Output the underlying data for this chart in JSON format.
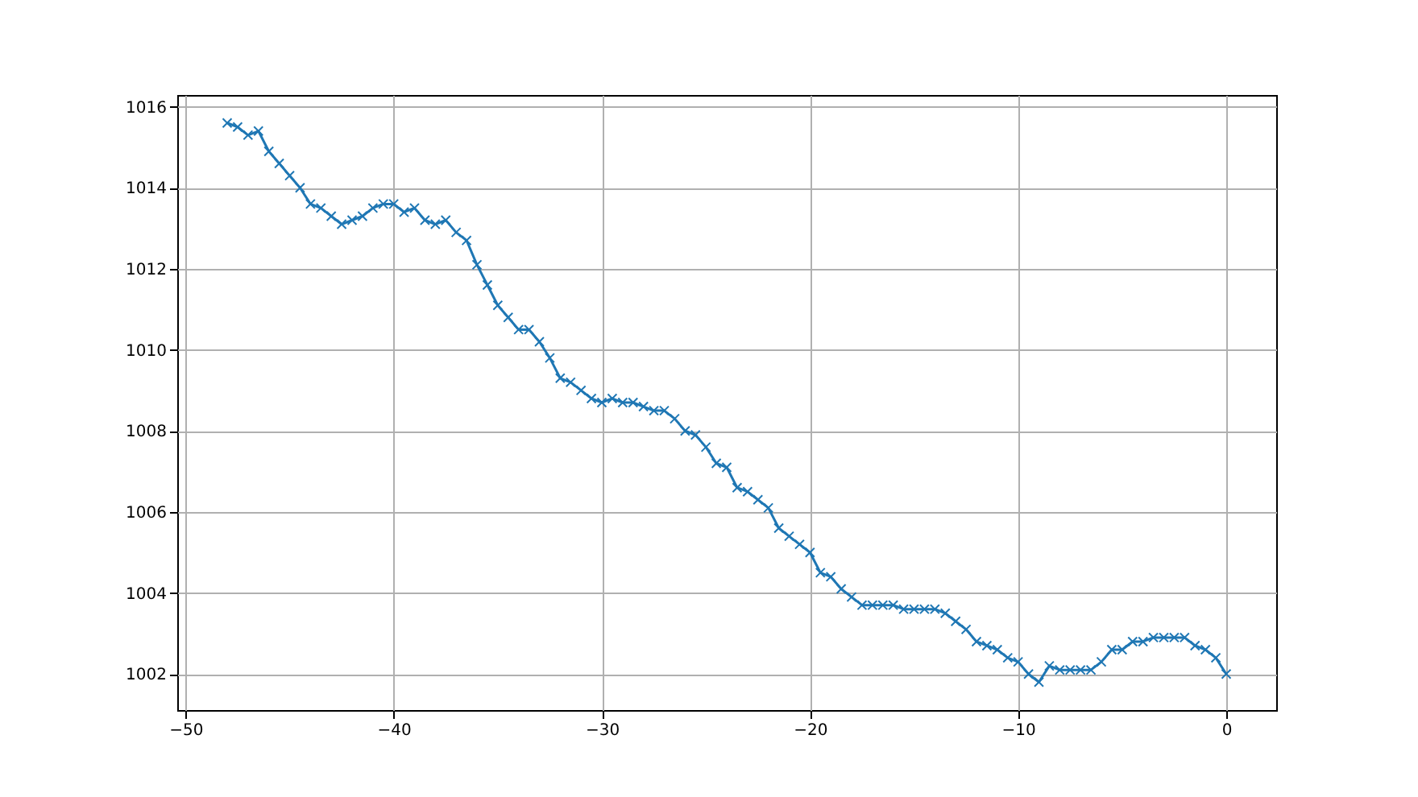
{
  "chart_data": {
    "type": "line",
    "marker": "cross",
    "grid": true,
    "x": [
      -48,
      -47.5,
      -47,
      -46.5,
      -46,
      -45.5,
      -45,
      -44.5,
      -44,
      -43.5,
      -43,
      -42.5,
      -42,
      -41.5,
      -41,
      -40.5,
      -40,
      -39.5,
      -39,
      -38.5,
      -38,
      -37.5,
      -37,
      -36.5,
      -36,
      -35.5,
      -35,
      -34.5,
      -34,
      -33.5,
      -33,
      -32.5,
      -32,
      -31.5,
      -31,
      -30.5,
      -30,
      -29.5,
      -29,
      -28.5,
      -28,
      -27.5,
      -27,
      -26.5,
      -26,
      -25.5,
      -25,
      -24.5,
      -24,
      -23.5,
      -23,
      -22.5,
      -22,
      -21.5,
      -21,
      -20.5,
      -20,
      -19.5,
      -19,
      -18.5,
      -18,
      -17.5,
      -17,
      -16.5,
      -16,
      -15.5,
      -15,
      -14.5,
      -14,
      -13.5,
      -13,
      -12.5,
      -12,
      -11.5,
      -11,
      -10.5,
      -10,
      -9.5,
      -9,
      -8.5,
      -8,
      -7.5,
      -7,
      -6.5,
      -6,
      -5.5,
      -5,
      -4.5,
      -4,
      -3.5,
      -3,
      -2.5,
      -2,
      -1.5,
      -1,
      -0.5,
      0
    ],
    "series": [
      {
        "color": "#1f77b4",
        "values": [
          1015.6,
          1015.5,
          1015.3,
          1015.4,
          1014.9,
          1014.6,
          1014.3,
          1014.0,
          1013.6,
          1013.5,
          1013.3,
          1013.1,
          1013.2,
          1013.3,
          1013.5,
          1013.6,
          1013.6,
          1013.4,
          1013.5,
          1013.2,
          1013.1,
          1013.2,
          1012.9,
          1012.7,
          1012.1,
          1011.6,
          1011.1,
          1010.8,
          1010.5,
          1010.5,
          1010.2,
          1009.8,
          1009.3,
          1009.2,
          1009.0,
          1008.8,
          1008.7,
          1008.8,
          1008.7,
          1008.7,
          1008.6,
          1008.5,
          1008.5,
          1008.3,
          1008.0,
          1007.9,
          1007.6,
          1007.2,
          1007.1,
          1006.6,
          1006.5,
          1006.3,
          1006.1,
          1005.6,
          1005.4,
          1005.2,
          1005.0,
          1004.5,
          1004.4,
          1004.1,
          1003.9,
          1003.7,
          1003.7,
          1003.7,
          1003.7,
          1003.6,
          1003.6,
          1003.6,
          1003.6,
          1003.5,
          1003.3,
          1003.1,
          1002.8,
          1002.7,
          1002.6,
          1002.4,
          1002.3,
          1002.0,
          1001.8,
          1002.2,
          1002.1,
          1002.1,
          1002.1,
          1002.1,
          1002.3,
          1002.6,
          1002.6,
          1002.8,
          1002.8,
          1002.9,
          1002.9,
          1002.9,
          1002.9,
          1002.7,
          1002.6,
          1002.4,
          1002.0
        ]
      }
    ],
    "xlim": [
      -50.4,
      2.4
    ],
    "ylim": [
      1001.11,
      1016.29
    ],
    "xticks": [
      -50,
      -40,
      -30,
      -20,
      -10,
      0
    ],
    "yticks": [
      1002,
      1004,
      1006,
      1008,
      1010,
      1012,
      1014,
      1016
    ]
  }
}
